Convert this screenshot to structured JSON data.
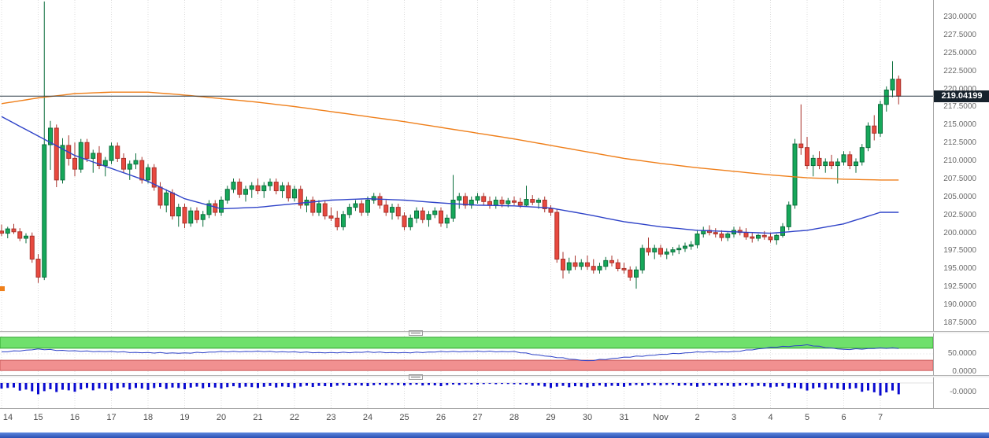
{
  "chart_data": {
    "type": "candlestick",
    "title": "",
    "time_labels": [
      "14",
      "15",
      "16",
      "17",
      "18",
      "19",
      "20",
      "21",
      "22",
      "23",
      "24",
      "25",
      "26",
      "27",
      "28",
      "29",
      "30",
      "31",
      "Nov",
      "2",
      "3",
      "4",
      "5",
      "6",
      "7"
    ],
    "candles_per_day": 6,
    "price_axis": {
      "ticks": [
        "230.0000",
        "227.5000",
        "225.0000",
        "222.5000",
        "220.0000",
        "217.5000",
        "215.0000",
        "212.5000",
        "210.0000",
        "207.5000",
        "205.0000",
        "202.5000",
        "200.0000",
        "197.5000",
        "195.0000",
        "192.5000",
        "190.0000",
        "187.5000"
      ],
      "max": 230.0,
      "min": 187.5,
      "current_price": 219.04199,
      "current_price_label": "219.04199"
    },
    "candles": [
      [
        200.3,
        201.2,
        199.6,
        200.0
      ],
      [
        200.0,
        200.9,
        199.3,
        200.6
      ],
      [
        200.6,
        201.3,
        199.9,
        200.2
      ],
      [
        200.2,
        200.7,
        198.9,
        199.3
      ],
      [
        199.3,
        200.0,
        198.6,
        199.6
      ],
      [
        199.6,
        200.1,
        195.9,
        196.4
      ],
      [
        196.4,
        197.1,
        193.1,
        193.9
      ],
      [
        193.9,
        232.2,
        193.5,
        212.3
      ],
      [
        212.3,
        215.6,
        208.8,
        214.6
      ],
      [
        214.6,
        215.1,
        206.4,
        207.4
      ],
      [
        207.4,
        213.2,
        206.9,
        212.2
      ],
      [
        212.2,
        213.6,
        209.4,
        210.4
      ],
      [
        210.4,
        212.6,
        207.9,
        208.9
      ],
      [
        208.9,
        213.1,
        208.4,
        212.6
      ],
      [
        212.6,
        213.1,
        209.9,
        210.4
      ],
      [
        210.4,
        211.6,
        208.4,
        211.1
      ],
      [
        211.1,
        212.1,
        208.9,
        209.4
      ],
      [
        209.4,
        210.6,
        207.9,
        210.1
      ],
      [
        210.1,
        212.6,
        209.6,
        212.1
      ],
      [
        212.1,
        212.6,
        209.9,
        210.4
      ],
      [
        210.4,
        211.1,
        208.4,
        208.9
      ],
      [
        208.9,
        210.1,
        207.4,
        209.6
      ],
      [
        209.6,
        211.1,
        208.9,
        210.1
      ],
      [
        210.1,
        210.6,
        206.9,
        207.4
      ],
      [
        207.4,
        209.6,
        206.9,
        209.1
      ],
      [
        209.1,
        209.6,
        205.9,
        206.4
      ],
      [
        206.4,
        207.1,
        203.4,
        203.9
      ],
      [
        203.9,
        206.1,
        202.9,
        205.6
      ],
      [
        205.6,
        206.1,
        201.9,
        202.4
      ],
      [
        202.4,
        204.1,
        200.9,
        203.6
      ],
      [
        203.6,
        204.1,
        200.7,
        201.4
      ],
      [
        201.4,
        203.6,
        200.9,
        203.1
      ],
      [
        203.1,
        203.6,
        201.4,
        201.9
      ],
      [
        201.9,
        203.1,
        200.9,
        202.6
      ],
      [
        202.6,
        204.6,
        202.1,
        204.1
      ],
      [
        204.1,
        204.6,
        202.4,
        202.9
      ],
      [
        202.9,
        205.1,
        202.4,
        204.6
      ],
      [
        204.6,
        206.6,
        204.1,
        206.1
      ],
      [
        206.1,
        207.6,
        205.6,
        207.1
      ],
      [
        207.1,
        207.6,
        204.9,
        205.4
      ],
      [
        205.4,
        206.6,
        204.4,
        206.1
      ],
      [
        206.1,
        207.1,
        204.9,
        206.6
      ],
      [
        206.6,
        207.6,
        205.4,
        205.9
      ],
      [
        205.9,
        207.1,
        204.9,
        206.6
      ],
      [
        206.6,
        207.6,
        205.9,
        207.1
      ],
      [
        207.1,
        207.6,
        205.4,
        205.9
      ],
      [
        205.9,
        207.1,
        204.9,
        206.6
      ],
      [
        206.6,
        207.1,
        204.4,
        204.9
      ],
      [
        204.9,
        206.6,
        204.4,
        206.1
      ],
      [
        206.1,
        206.6,
        203.4,
        203.9
      ],
      [
        203.9,
        205.1,
        202.9,
        204.6
      ],
      [
        204.6,
        205.1,
        202.4,
        202.9
      ],
      [
        202.9,
        204.6,
        202.4,
        204.1
      ],
      [
        204.1,
        204.6,
        201.9,
        202.4
      ],
      [
        202.4,
        203.6,
        201.7,
        202.1
      ],
      [
        202.1,
        203.1,
        200.4,
        200.9
      ],
      [
        200.9,
        203.1,
        200.4,
        202.6
      ],
      [
        202.6,
        204.1,
        202.1,
        203.6
      ],
      [
        203.6,
        204.6,
        203.1,
        204.1
      ],
      [
        204.1,
        204.6,
        202.4,
        202.9
      ],
      [
        202.9,
        205.1,
        202.4,
        204.6
      ],
      [
        204.6,
        205.6,
        204.1,
        205.1
      ],
      [
        205.1,
        205.6,
        203.4,
        203.9
      ],
      [
        203.9,
        204.6,
        202.4,
        202.9
      ],
      [
        202.9,
        204.1,
        201.9,
        203.6
      ],
      [
        203.6,
        204.1,
        201.9,
        202.4
      ],
      [
        202.4,
        202.9,
        200.4,
        200.9
      ],
      [
        200.9,
        202.6,
        200.4,
        202.1
      ],
      [
        202.1,
        203.6,
        201.4,
        203.1
      ],
      [
        203.1,
        203.6,
        201.4,
        201.9
      ],
      [
        201.9,
        203.1,
        200.9,
        202.6
      ],
      [
        202.6,
        203.6,
        202.1,
        203.1
      ],
      [
        203.1,
        203.6,
        200.9,
        201.4
      ],
      [
        201.4,
        202.6,
        200.7,
        202.1
      ],
      [
        202.1,
        208.1,
        201.6,
        204.6
      ],
      [
        204.6,
        205.6,
        203.4,
        205.1
      ],
      [
        205.1,
        205.6,
        203.4,
        203.9
      ],
      [
        203.9,
        205.1,
        203.4,
        204.6
      ],
      [
        204.6,
        205.6,
        204.1,
        205.1
      ],
      [
        205.1,
        205.6,
        203.9,
        204.4
      ],
      [
        204.4,
        205.1,
        203.4,
        203.9
      ],
      [
        203.9,
        205.1,
        203.4,
        204.6
      ],
      [
        204.6,
        205.1,
        203.6,
        204.1
      ],
      [
        204.1,
        204.9,
        203.6,
        204.5
      ],
      [
        204.5,
        205.1,
        203.9,
        204.3
      ],
      [
        204.3,
        204.9,
        203.5,
        203.9
      ],
      [
        203.9,
        206.6,
        203.7,
        204.7
      ],
      [
        204.7,
        205.3,
        203.9,
        204.3
      ],
      [
        204.3,
        204.9,
        203.4,
        204.6
      ],
      [
        204.6,
        205.1,
        202.9,
        203.4
      ],
      [
        203.4,
        203.9,
        202.4,
        202.9
      ],
      [
        202.9,
        203.4,
        195.9,
        196.4
      ],
      [
        196.4,
        197.4,
        193.7,
        194.9
      ],
      [
        194.9,
        196.6,
        194.4,
        195.9
      ],
      [
        195.9,
        196.9,
        194.9,
        195.4
      ],
      [
        195.4,
        196.4,
        194.9,
        195.9
      ],
      [
        195.9,
        196.9,
        194.9,
        195.4
      ],
      [
        195.4,
        196.4,
        194.4,
        194.9
      ],
      [
        194.9,
        195.9,
        194.4,
        195.4
      ],
      [
        195.4,
        196.7,
        194.9,
        196.2
      ],
      [
        196.2,
        196.9,
        195.4,
        195.9
      ],
      [
        195.9,
        196.4,
        194.7,
        195.1
      ],
      [
        195.1,
        195.9,
        194.4,
        194.9
      ],
      [
        194.9,
        195.4,
        193.4,
        193.9
      ],
      [
        193.9,
        195.4,
        192.3,
        194.9
      ],
      [
        194.9,
        198.4,
        194.4,
        197.9
      ],
      [
        197.9,
        199.4,
        196.9,
        197.4
      ],
      [
        197.4,
        198.4,
        196.4,
        197.9
      ],
      [
        197.9,
        198.4,
        196.7,
        197.1
      ],
      [
        197.1,
        197.9,
        196.4,
        197.4
      ],
      [
        197.4,
        198.1,
        196.9,
        197.7
      ],
      [
        197.7,
        198.4,
        197.1,
        197.9
      ],
      [
        197.9,
        198.7,
        197.4,
        198.2
      ],
      [
        198.2,
        198.9,
        197.7,
        198.4
      ],
      [
        198.4,
        200.4,
        197.9,
        199.9
      ],
      [
        199.9,
        200.9,
        199.4,
        200.4
      ],
      [
        200.4,
        201.1,
        199.7,
        200.1
      ],
      [
        200.1,
        200.7,
        199.4,
        199.9
      ],
      [
        199.9,
        200.4,
        198.9,
        199.4
      ],
      [
        199.4,
        200.1,
        198.9,
        199.9
      ],
      [
        199.9,
        200.9,
        199.4,
        200.4
      ],
      [
        200.4,
        200.9,
        199.7,
        200.1
      ],
      [
        200.1,
        200.7,
        199.1,
        199.5
      ],
      [
        199.5,
        200.1,
        198.7,
        199.3
      ],
      [
        199.3,
        199.9,
        198.9,
        199.7
      ],
      [
        199.7,
        200.3,
        199.1,
        199.5
      ],
      [
        199.5,
        200.1,
        198.7,
        199.1
      ],
      [
        199.1,
        199.9,
        198.4,
        199.7
      ],
      [
        199.7,
        201.4,
        199.4,
        200.9
      ],
      [
        200.9,
        204.4,
        200.4,
        203.9
      ],
      [
        203.9,
        213.1,
        203.4,
        212.4
      ],
      [
        212.4,
        217.9,
        210.9,
        211.9
      ],
      [
        211.9,
        213.4,
        208.9,
        209.4
      ],
      [
        209.4,
        210.9,
        207.9,
        210.4
      ],
      [
        210.4,
        211.4,
        208.9,
        209.4
      ],
      [
        209.4,
        210.4,
        208.4,
        209.9
      ],
      [
        209.9,
        210.9,
        208.9,
        209.4
      ],
      [
        209.4,
        210.4,
        206.9,
        209.9
      ],
      [
        209.9,
        211.4,
        209.4,
        210.9
      ],
      [
        210.9,
        211.4,
        208.9,
        209.4
      ],
      [
        209.4,
        210.4,
        208.4,
        209.9
      ],
      [
        209.9,
        212.4,
        209.4,
        211.9
      ],
      [
        211.9,
        215.4,
        211.4,
        214.9
      ],
      [
        214.9,
        216.4,
        212.9,
        213.9
      ],
      [
        213.9,
        218.4,
        213.4,
        217.9
      ],
      [
        217.9,
        220.4,
        216.9,
        219.9
      ],
      [
        219.9,
        223.9,
        218.9,
        221.4
      ],
      [
        221.4,
        221.9,
        217.9,
        219.04
      ]
    ],
    "overlays": {
      "ma_slow_orange": {
        "name": "slow-moving-average",
        "color": "#ef7f1a",
        "daily_values": [
          218.0,
          218.8,
          219.4,
          219.6,
          219.6,
          219.2,
          218.7,
          218.2,
          217.6,
          216.9,
          216.2,
          215.5,
          214.7,
          213.9,
          213.1,
          212.2,
          211.3,
          210.4,
          209.7,
          209.1,
          208.6,
          208.1,
          207.7,
          207.5,
          207.4
        ]
      },
      "ma_fast_blue": {
        "name": "fast-moving-average",
        "color": "#2f43c8",
        "daily_values": [
          216.2,
          213.5,
          210.8,
          209.0,
          207.2,
          204.8,
          203.4,
          203.6,
          204.1,
          204.6,
          204.8,
          204.6,
          204.2,
          203.9,
          203.8,
          203.5,
          202.6,
          201.6,
          200.9,
          200.4,
          200.2,
          200.0,
          200.4,
          201.3,
          202.9
        ]
      }
    },
    "indicator_oscillator": {
      "axis_labels": [
        "50.0000",
        "0.0000"
      ],
      "range": [
        0,
        100
      ],
      "green_zone": [
        66,
        97
      ],
      "red_zone": [
        3,
        32
      ],
      "line_color": "#2f43c8",
      "green_color": "#6fe06c",
      "green_edge": "#2da32b",
      "red_color": "#f19090",
      "red_edge": "#cc5a5a",
      "daily_values": [
        55,
        63,
        58,
        56,
        53,
        52,
        56,
        57,
        55,
        53,
        55,
        53,
        56,
        57,
        56,
        42,
        30,
        40,
        48,
        55,
        56,
        68,
        75,
        62,
        66
      ]
    },
    "indicator_histogram": {
      "axis_label": "-0.0000",
      "bar_color": "#0a0ad0",
      "daily_magnitudes": [
        0.45,
        0.9,
        0.7,
        0.6,
        0.55,
        0.5,
        0.45,
        0.4,
        0.4,
        0.3,
        0.25,
        0.2,
        0.25,
        0.12,
        0.1,
        0.4,
        0.35,
        0.3,
        0.2,
        0.3,
        0.28,
        0.35,
        0.6,
        0.55,
        1.0
      ]
    },
    "colors": {
      "up_fill": "#16a85a",
      "up_stroke": "#0b6e3c",
      "down_fill": "#e8493f",
      "down_stroke": "#a8332c",
      "price_line": "#2b3a45",
      "badge_bg": "#17222c",
      "badge_text": "#ffffff",
      "grid": "#dcdcdc",
      "axis_text": "#6b6b6b",
      "object_marker": "#ef7f1a"
    }
  }
}
